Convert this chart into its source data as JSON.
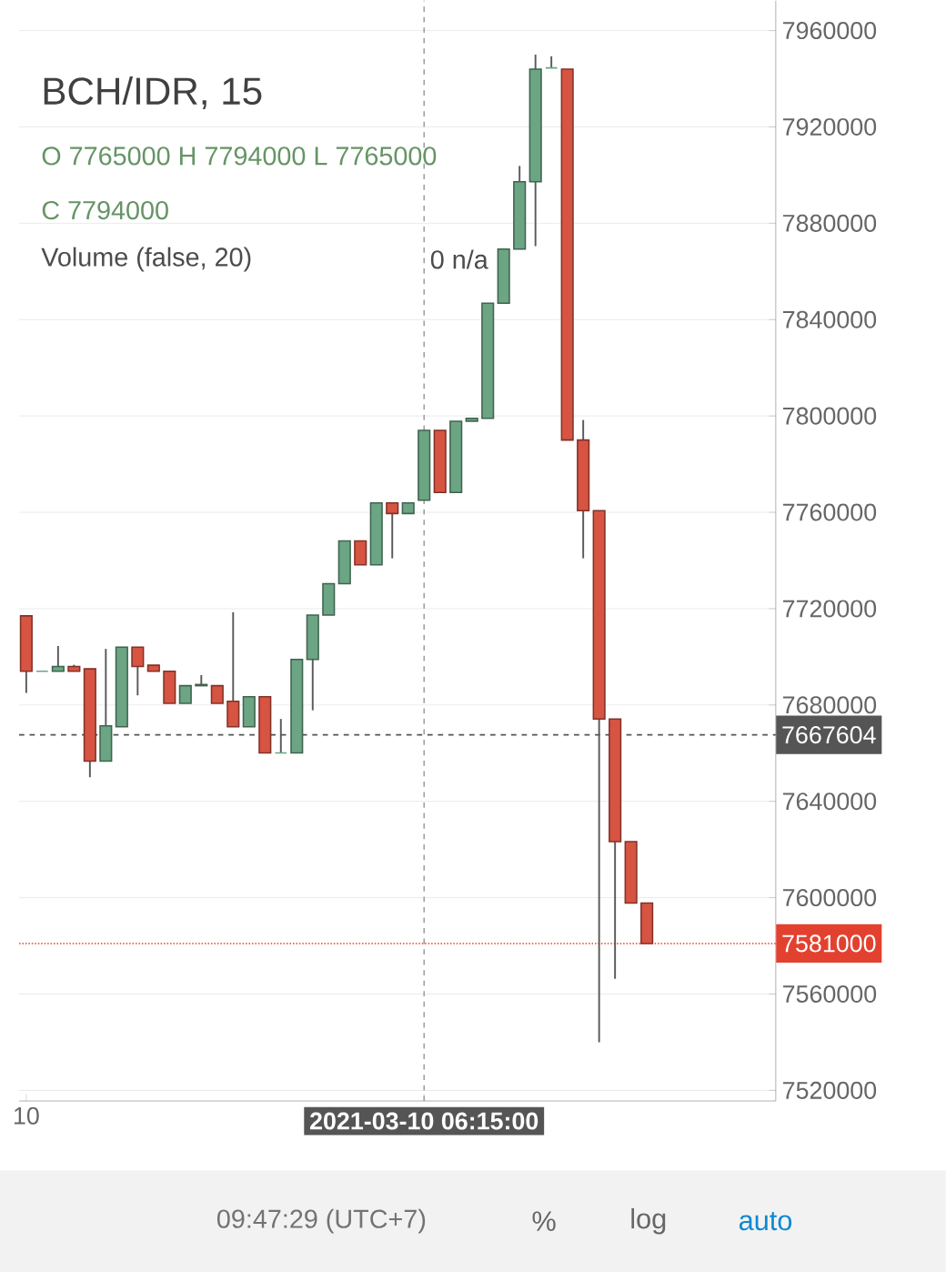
{
  "chart_data": {
    "type": "candlestick",
    "title": "BCH/IDR, 15",
    "categories": [
      "10",
      null,
      null,
      null,
      null,
      null,
      null,
      null,
      null,
      null,
      null,
      null,
      null,
      null,
      null,
      null,
      null,
      null,
      null,
      null,
      null,
      null,
      null,
      null,
      null,
      "2021-03-10 06:15:00",
      null,
      null,
      null,
      null,
      null,
      null,
      null,
      null,
      null,
      null,
      null,
      null,
      null,
      null
    ],
    "ohlc": [
      [
        7717000,
        7717000,
        7685000,
        7694000
      ],
      [
        7694000,
        7694000,
        7694000,
        7694000
      ],
      [
        7694000,
        7704500,
        7694000,
        7696000
      ],
      [
        7696000,
        7696700,
        7694000,
        7694000
      ],
      [
        7695000,
        7695000,
        7650000,
        7656700
      ],
      [
        7656700,
        7703300,
        7656700,
        7671300
      ],
      [
        7671000,
        7704000,
        7671000,
        7704000
      ],
      [
        7704000,
        7704000,
        7684000,
        7696000
      ],
      [
        7696500,
        7696500,
        7694000,
        7694000
      ],
      [
        7694000,
        7694000,
        7680700,
        7680700
      ],
      [
        7680700,
        7688000,
        7680700,
        7688000
      ],
      [
        7688000,
        7692400,
        7688000,
        7688500
      ],
      [
        7688000,
        7688000,
        7680700,
        7680700
      ],
      [
        7681500,
        7718500,
        7671000,
        7671000
      ],
      [
        7671000,
        7683400,
        7671000,
        7683400
      ],
      [
        7683400,
        7683400,
        7660100,
        7660100
      ],
      [
        7660100,
        7674200,
        7660100,
        7660100
      ],
      [
        7660100,
        7698900,
        7660100,
        7698900
      ],
      [
        7698900,
        7717300,
        7677800,
        7717300
      ],
      [
        7717300,
        7730400,
        7717300,
        7730400
      ],
      [
        7730400,
        7748100,
        7730400,
        7748100
      ],
      [
        7748100,
        7748100,
        7738200,
        7738200
      ],
      [
        7738200,
        7763900,
        7738200,
        7763900
      ],
      [
        7763900,
        7763900,
        7740900,
        7759500
      ],
      [
        7759500,
        7763900,
        7759500,
        7763900
      ],
      [
        7765000,
        7794000,
        7765000,
        7794000
      ],
      [
        7794000,
        7794000,
        7768200,
        7768200
      ],
      [
        7768200,
        7797800,
        7768200,
        7797800
      ],
      [
        7797800,
        7799000,
        7797800,
        7799000
      ],
      [
        7799000,
        7846800,
        7799000,
        7846800
      ],
      [
        7846800,
        7869300,
        7846800,
        7869300
      ],
      [
        7869300,
        7903800,
        7869300,
        7897200
      ],
      [
        7897200,
        7950000,
        7870500,
        7944000
      ],
      [
        7944500,
        7949300,
        7944500,
        7944500
      ],
      [
        7944000,
        7944000,
        7790000,
        7790000
      ],
      [
        7790000,
        7798300,
        7740900,
        7760700
      ],
      [
        7760700,
        7760700,
        7540000,
        7674200
      ],
      [
        7674200,
        7674200,
        7566300,
        7623300
      ],
      [
        7623300,
        7623300,
        7597800,
        7597800
      ],
      [
        7597800,
        7597800,
        7581000,
        7581000
      ]
    ],
    "colors": [
      "#d75442",
      "#6ba583",
      "#6ba583",
      "#d75442",
      "#d75442",
      "#6ba583",
      "#6ba583",
      "#d75442",
      "#d75442",
      "#d75442",
      "#6ba583",
      "#6ba583",
      "#d75442",
      "#d75442",
      "#6ba583",
      "#d75442",
      "#6ba583",
      "#6ba583",
      "#6ba583",
      "#6ba583",
      "#6ba583",
      "#d75442",
      "#6ba583",
      "#d75442",
      "#6ba583",
      "#6ba583",
      "#d75442",
      "#6ba583",
      "#6ba583",
      "#6ba583",
      "#6ba583",
      "#6ba583",
      "#6ba583",
      "#6ba583",
      "#d75442",
      "#d75442",
      "#d75442",
      "#d75442",
      "#d75442",
      "#d75442"
    ],
    "ylim": [
      7515600,
      7972400
    ],
    "yticks": [
      7520000,
      7560000,
      7600000,
      7640000,
      7680000,
      7720000,
      7760000,
      7800000,
      7840000,
      7880000,
      7920000,
      7960000
    ],
    "grid": "y",
    "ref_lines": [
      {
        "axis": "x",
        "value": "2021-03-10 06:15:00",
        "color": "#9e9e9e",
        "line_style": "dashed"
      },
      {
        "axis": "y",
        "value": 7667604,
        "label": "7667604",
        "color": "#555555",
        "line_style": "dashed"
      },
      {
        "axis": "y",
        "value": 7581000,
        "label": "7581000",
        "color": "#e3412f",
        "line_style": "dotted"
      }
    ],
    "annotations": [
      "O 7765000 H 7794000 L 7765000",
      "C 7794000",
      "Volume (false, 20)",
      "0 n/a",
      "09:47:29 (UTC+7)",
      "%",
      "log",
      "auto"
    ]
  }
}
